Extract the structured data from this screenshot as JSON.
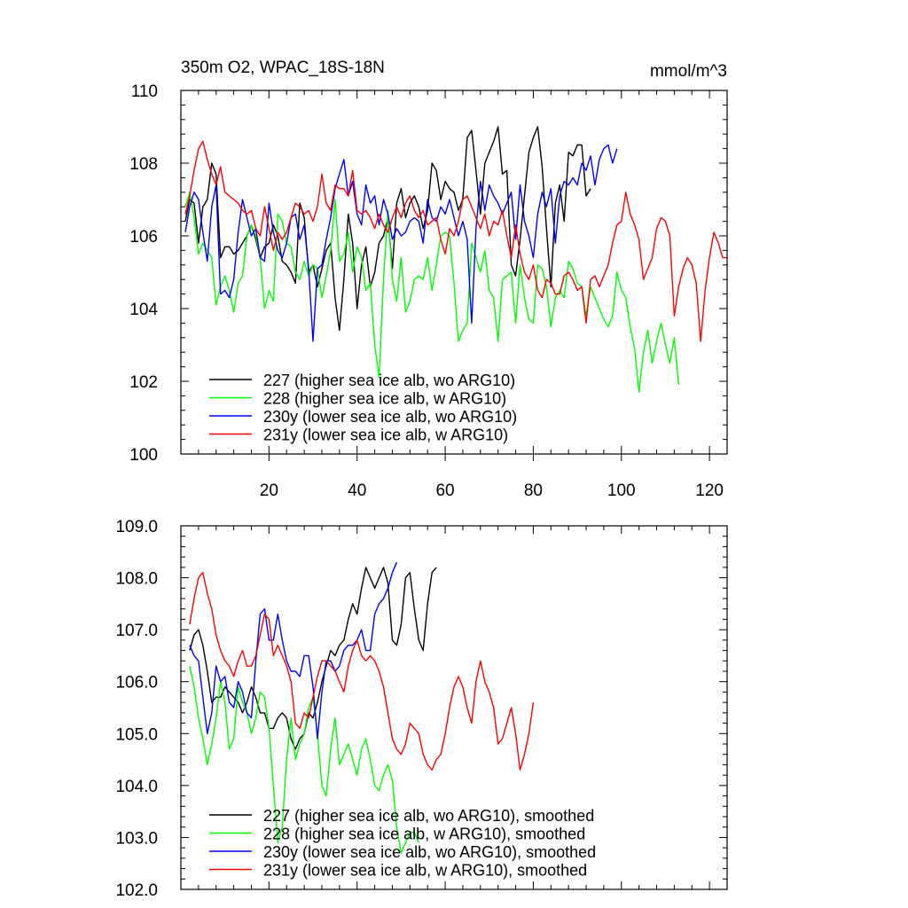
{
  "chart_data": [
    {
      "type": "line",
      "title": "350m O2, WPAC_18S-18N",
      "unit_label": "mmol/m^3",
      "xlim": [
        0,
        124
      ],
      "ylim": [
        100,
        110
      ],
      "x_ticks": [
        20,
        40,
        60,
        80,
        100,
        120
      ],
      "x_tick_labels": [
        "20",
        "40",
        "60",
        "80",
        "100",
        "120"
      ],
      "y_ticks": [
        100,
        102,
        104,
        106,
        108,
        110
      ],
      "y_tick_labels": [
        "100",
        "102",
        "104",
        "106",
        "108",
        "110"
      ],
      "legend_position": "bottom-left",
      "series": [
        {
          "name": "227 (higher sea ice alb, wo ARG10)",
          "color": "#000000",
          "x_start": 1,
          "values": [
            106.4,
            107.0,
            106.9,
            105.8,
            106.8,
            107.0,
            108.0,
            107.7,
            105.4,
            105.7,
            105.7,
            105.5,
            105.6,
            105.8,
            106.0,
            106.3,
            105.9,
            105.4,
            105.7,
            105.8,
            106.3,
            106.0,
            105.3,
            105.2,
            105.0,
            104.7,
            106.9,
            106.5,
            105.0,
            105.2,
            104.6,
            105.1,
            105.6,
            105.8,
            104.3,
            103.4,
            104.8,
            106.6,
            105.8,
            104.0,
            105.2,
            105.7,
            104.6,
            105.0,
            105.8,
            106.0,
            106.5,
            105.1,
            106.9,
            107.3,
            106.5,
            106.9,
            107.1,
            106.8,
            106.2,
            106.7,
            108.0,
            107.8,
            107.0,
            107.5,
            107.3,
            107.2,
            106.7,
            107.0,
            108.7,
            108.9,
            107.8,
            106.6,
            108.0,
            108.3,
            108.6,
            109.0,
            107.7,
            107.8,
            105.2,
            104.9,
            105.9,
            107.1,
            108.3,
            108.7,
            109.0,
            107.9,
            106.2,
            104.6,
            106.9,
            107.4,
            106.4,
            108.3,
            108.2,
            108.5,
            108.5,
            107.1,
            107.3
          ]
        },
        {
          "name": "228 (higher sea ice alb, w ARG10)",
          "color": "#00ff00",
          "x_start": 1,
          "values": [
            106.8,
            107.2,
            106.5,
            105.5,
            105.8,
            105.6,
            105.4,
            104.1,
            104.6,
            104.9,
            104.5,
            103.9,
            104.7,
            104.9,
            106.0,
            106.3,
            106.0,
            105.4,
            104.0,
            104.5,
            104.2,
            106.6,
            106.4,
            105.8,
            105.7,
            105.0,
            104.8,
            105.3,
            104.9,
            105.2,
            105.1,
            104.3,
            104.9,
            105.6,
            107.0,
            105.3,
            105.5,
            106.1,
            105.0,
            105.7,
            105.4,
            104.5,
            104.7,
            103.0,
            102.1,
            104.8,
            106.7,
            104.8,
            104.2,
            105.4,
            103.9,
            104.2,
            104.8,
            104.9,
            104.8,
            105.4,
            104.5,
            105.2,
            106.0,
            106.1,
            106.0,
            104.7,
            103.1,
            103.4,
            103.6,
            105.8,
            105.4,
            105.0,
            105.6,
            104.5,
            104.3,
            103.1,
            104.8,
            104.9,
            105.0,
            103.6,
            105.2,
            104.3,
            103.7,
            103.6,
            105.2,
            105.1,
            104.6,
            103.5,
            104.3,
            104.5,
            104.3,
            105.3,
            105.1,
            104.7,
            104.6,
            103.8,
            104.6,
            104.3,
            104.0,
            103.7,
            103.5,
            103.8,
            105.0,
            104.5,
            104.3,
            103.5,
            102.9,
            101.7,
            102.8,
            103.4,
            102.5,
            103.1,
            103.6,
            103.0,
            102.5,
            103.2,
            101.9
          ]
        },
        {
          "name": "230y (lower sea ice alb, wo ARG10)",
          "color": "#0000ff",
          "x_start": 1,
          "values": [
            106.1,
            106.8,
            107.2,
            107.0,
            106.1,
            105.3,
            106.8,
            107.4,
            104.4,
            104.5,
            104.3,
            104.8,
            106.1,
            107.0,
            106.5,
            106.0,
            106.2,
            105.4,
            105.3,
            106.9,
            106.1,
            105.6,
            105.4,
            105.8,
            106.5,
            106.6,
            105.9,
            106.3,
            105.1,
            103.1,
            105.1,
            105.2,
            105.9,
            106.5,
            107.3,
            107.7,
            108.1,
            107.1,
            107.5,
            106.6,
            106.3,
            107.4,
            106.9,
            107.1,
            106.3,
            107.0,
            106.6,
            105.9,
            106.2,
            106.0,
            106.1,
            106.4,
            106.5,
            106.4,
            105.8,
            107.0,
            106.5,
            106.4,
            106.8,
            106.6,
            107.0,
            106.5,
            106.0,
            106.4,
            105.9,
            103.6,
            106.2,
            107.5,
            106.7,
            107.4,
            107.1,
            106.9,
            106.6,
            106.9,
            107.2,
            105.9,
            107.4,
            106.4,
            106.0,
            105.4,
            106.6,
            107.2,
            106.8,
            107.3,
            105.8,
            107.1,
            107.5,
            107.4,
            107.6,
            107.4,
            108.0,
            107.8,
            108.2,
            107.4,
            108.1,
            108.4,
            108.5,
            108.0,
            108.4
          ]
        },
        {
          "name": "231y (lower sea ice alb, w ARG10)",
          "color": "#ff0000",
          "x_start": 1,
          "values": [
            106.6,
            107.1,
            107.8,
            108.4,
            108.6,
            108.1,
            107.7,
            107.4,
            107.9,
            107.2,
            107.1,
            107.0,
            106.9,
            106.7,
            106.6,
            106.7,
            106.2,
            106.0,
            106.8,
            106.2,
            105.6,
            106.1,
            105.9,
            106.1,
            106.5,
            106.9,
            106.8,
            106.6,
            106.7,
            106.4,
            106.8,
            107.7,
            106.9,
            106.7,
            107.4,
            107.3,
            107.3,
            107.1,
            107.8,
            106.7,
            106.6,
            106.7,
            106.5,
            106.2,
            106.6,
            106.3,
            106.1,
            106.5,
            106.8,
            106.5,
            106.9,
            107.1,
            106.7,
            106.5,
            106.7,
            106.3,
            106.4,
            106.5,
            105.9,
            105.5,
            106.2,
            106.0,
            106.4,
            107.0,
            107.1,
            106.8,
            106.5,
            106.2,
            106.6,
            106.0,
            106.4,
            106.3,
            106.7,
            106.0,
            105.4,
            106.3,
            105.5,
            105.0,
            104.8,
            105.2,
            104.5,
            104.3,
            104.8,
            104.7,
            104.4,
            104.4,
            104.9,
            105.0,
            104.8,
            104.5,
            104.6,
            103.6,
            104.8,
            104.9,
            104.6,
            104.9,
            105.2,
            105.8,
            106.3,
            106.4,
            107.2,
            106.6,
            106.3,
            105.9,
            104.8,
            105.1,
            105.4,
            106.2,
            106.5,
            106.4,
            106.0,
            103.8,
            104.6,
            105.1,
            105.4,
            105.2,
            104.7,
            103.1,
            104.5,
            105.4,
            106.1,
            105.8,
            105.4,
            105.4
          ]
        }
      ]
    },
    {
      "type": "line",
      "title": "",
      "xlim": [
        0,
        124
      ],
      "ylim": [
        102,
        109
      ],
      "y_ticks": [
        102,
        103,
        104,
        105,
        106,
        107,
        108,
        109
      ],
      "y_tick_labels": [
        "102.0",
        "103.0",
        "104.0",
        "105.0",
        "106.0",
        "107.0",
        "108.0",
        "109.0"
      ],
      "legend_position": "bottom-left",
      "series": [
        {
          "name": "227 (higher sea ice alb, wo ARG10), smoothed",
          "color": "#000000",
          "x_start": 2,
          "values": [
            106.6,
            106.9,
            107.0,
            106.7,
            106.2,
            105.6,
            105.7,
            105.7,
            105.9,
            105.8,
            105.7,
            105.6,
            105.4,
            105.6,
            105.9,
            105.7,
            105.4,
            105.4,
            105.1,
            105.1,
            105.3,
            105.4,
            105.3,
            104.9,
            104.7,
            104.9,
            105.0,
            105.4,
            105.3,
            105.6,
            106.0,
            106.3,
            106.6,
            106.5,
            106.7,
            106.8,
            107.2,
            107.5,
            107.3,
            107.8,
            108.2,
            108.0,
            107.8,
            108.0,
            108.2,
            107.9,
            106.8,
            106.7,
            107.1,
            108.0,
            108.1,
            107.4,
            106.8,
            106.6,
            107.5,
            108.1,
            108.2
          ]
        },
        {
          "name": "228 (higher sea ice alb, w ARG10), smoothed",
          "color": "#00ff00",
          "x_start": 2,
          "values": [
            106.3,
            105.9,
            105.3,
            104.9,
            104.4,
            104.8,
            105.3,
            106.0,
            105.6,
            104.7,
            104.9,
            105.9,
            105.6,
            105.4,
            105.0,
            105.3,
            105.8,
            105.7,
            105.1,
            104.0,
            102.9,
            103.2,
            104.5,
            105.3,
            104.5,
            104.8,
            105.0,
            105.5,
            105.7,
            105.0,
            104.0,
            103.8,
            104.7,
            105.3,
            104.4,
            104.6,
            104.8,
            104.5,
            104.2,
            104.7,
            104.9,
            104.5,
            104.0,
            103.9,
            104.2,
            104.4,
            104.1,
            103.2,
            102.7,
            102.9,
            103.1,
            103.1,
            102.9
          ]
        },
        {
          "name": "230y (lower sea ice alb, wo ARG10), smoothed",
          "color": "#0000ff",
          "x_start": 2,
          "values": [
            106.7,
            106.5,
            106.4,
            105.7,
            105.0,
            105.4,
            106.3,
            106.0,
            106.1,
            105.6,
            105.5,
            106.0,
            105.8,
            105.4,
            105.3,
            106.4,
            107.3,
            107.4,
            106.8,
            106.8,
            107.3,
            106.8,
            106.4,
            106.2,
            106.2,
            106.1,
            106.5,
            106.5,
            105.9,
            104.9,
            105.8,
            106.4,
            106.4,
            106.2,
            106.3,
            106.6,
            106.7,
            106.7,
            106.8,
            107.0,
            106.6,
            106.6,
            107.3,
            107.5,
            107.6,
            107.8,
            108.1,
            108.3
          ]
        },
        {
          "name": "231y (lower sea ice alb, w ARG10), smoothed",
          "color": "#ff0000",
          "x_start": 2,
          "values": [
            107.1,
            107.6,
            108.0,
            108.1,
            107.7,
            107.4,
            106.9,
            106.6,
            106.4,
            106.3,
            106.1,
            106.4,
            106.6,
            106.3,
            106.3,
            106.5,
            106.9,
            107.3,
            107.2,
            106.5,
            106.7,
            106.5,
            106.3,
            106.0,
            105.2,
            105.1,
            105.4,
            105.3,
            105.7,
            106.1,
            106.4,
            106.4,
            106.3,
            106.2,
            106.0,
            105.8,
            106.3,
            106.6,
            106.8,
            106.5,
            106.4,
            106.5,
            106.4,
            106.2,
            105.9,
            105.4,
            104.9,
            104.7,
            104.6,
            104.8,
            105.2,
            105.1,
            105.0,
            104.6,
            104.4,
            104.3,
            104.5,
            104.6,
            105.0,
            105.5,
            105.9,
            106.1,
            105.9,
            105.5,
            105.2,
            106.0,
            106.4,
            106.0,
            105.8,
            105.5,
            104.8,
            104.9,
            105.2,
            105.5,
            105.0,
            104.3,
            104.6,
            105.0,
            105.6
          ]
        }
      ]
    }
  ]
}
